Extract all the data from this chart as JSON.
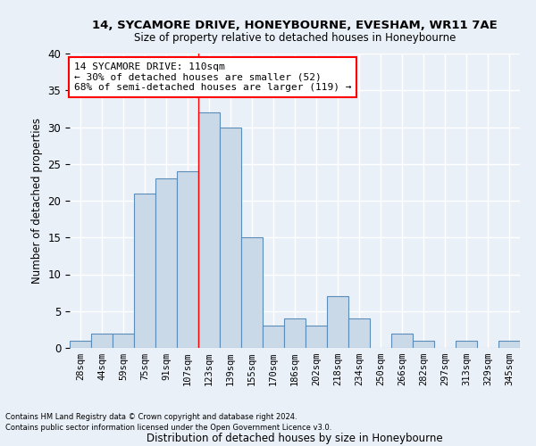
{
  "title1": "14, SYCAMORE DRIVE, HONEYBOURNE, EVESHAM, WR11 7AE",
  "title2": "Size of property relative to detached houses in Honeybourne",
  "xlabel": "Distribution of detached houses by size in Honeybourne",
  "ylabel": "Number of detached properties",
  "bin_labels": [
    "28sqm",
    "44sqm",
    "59sqm",
    "75sqm",
    "91sqm",
    "107sqm",
    "123sqm",
    "139sqm",
    "155sqm",
    "170sqm",
    "186sqm",
    "202sqm",
    "218sqm",
    "234sqm",
    "250sqm",
    "266sqm",
    "282sqm",
    "297sqm",
    "313sqm",
    "329sqm",
    "345sqm"
  ],
  "bar_values": [
    1,
    2,
    2,
    21,
    23,
    24,
    32,
    30,
    15,
    3,
    4,
    3,
    7,
    4,
    0,
    2,
    1,
    0,
    1,
    0,
    1
  ],
  "bar_color": "#c9d9e8",
  "bar_edge_color": "#5b8db8",
  "vline_x": 5.5,
  "annotation_text": "14 SYCAMORE DRIVE: 110sqm\n← 30% of detached houses are smaller (52)\n68% of semi-detached houses are larger (119) →",
  "annotation_box_color": "white",
  "annotation_box_edge_color": "red",
  "footnote1": "Contains HM Land Registry data © Crown copyright and database right 2024.",
  "footnote2": "Contains public sector information licensed under the Open Government Licence v3.0.",
  "bg_color": "#eaf0f8",
  "plot_bg_color": "#eaf0f8",
  "grid_color": "white",
  "ylim": [
    0,
    40
  ],
  "yticks": [
    0,
    5,
    10,
    15,
    20,
    25,
    30,
    35,
    40
  ]
}
